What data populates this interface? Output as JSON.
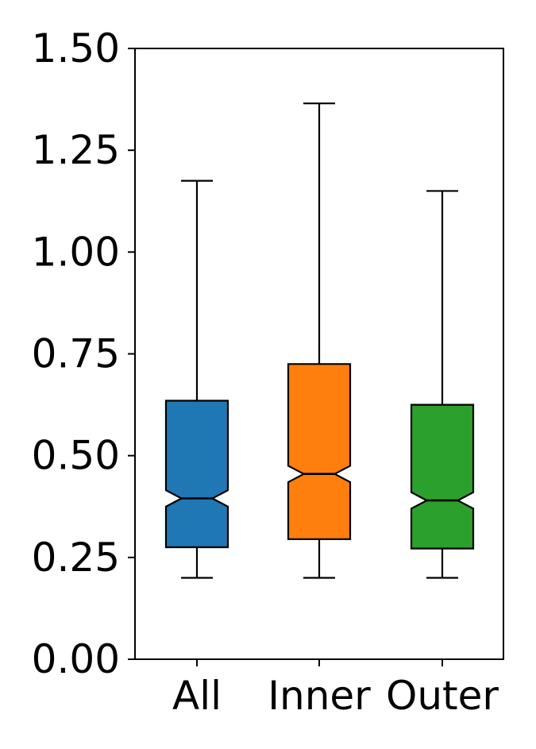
{
  "chart_data": {
    "type": "boxplot",
    "notched": true,
    "categories": [
      "All",
      "Inner",
      "Outer"
    ],
    "boxes": [
      {
        "category": "All",
        "whislo": 0.2,
        "q1": 0.275,
        "median": 0.395,
        "q3": 0.635,
        "whishi": 1.175,
        "color": "#1f77b4"
      },
      {
        "category": "Inner",
        "whislo": 0.2,
        "q1": 0.295,
        "median": 0.455,
        "q3": 0.725,
        "whishi": 1.365,
        "color": "#ff7f0e"
      },
      {
        "category": "Outer",
        "whislo": 0.2,
        "q1": 0.272,
        "median": 0.39,
        "q3": 0.625,
        "whishi": 1.15,
        "color": "#2ca02c"
      }
    ],
    "ylim": [
      0,
      1.5
    ],
    "yticks": [
      0.0,
      0.25,
      0.5,
      0.75,
      1.0,
      1.25,
      1.5
    ],
    "ytick_labels": [
      "0.00",
      "0.25",
      "0.50",
      "0.75",
      "1.00",
      "1.25",
      "1.50"
    ],
    "title": "",
    "xlabel": "",
    "ylabel": "",
    "grid": false,
    "legend": "none"
  }
}
